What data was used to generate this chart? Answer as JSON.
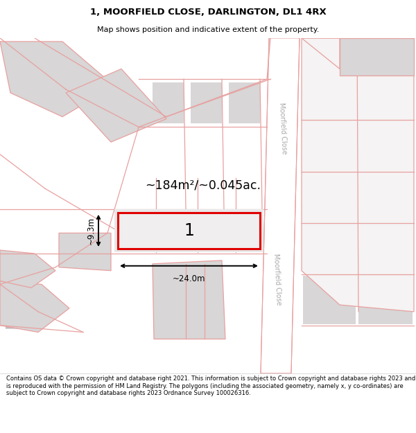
{
  "title": "1, MOORFIELD CLOSE, DARLINGTON, DL1 4RX",
  "subtitle": "Map shows position and indicative extent of the property.",
  "footer": "Contains OS data © Crown copyright and database right 2021. This information is subject to Crown copyright and database rights 2023 and is reproduced with the permission of HM Land Registry. The polygons (including the associated geometry, namely x, y co-ordinates) are subject to Crown copyright and database rights 2023 Ordnance Survey 100026316.",
  "area_text": "~184m²/~0.045ac.",
  "dim_width": "~24.0m",
  "dim_height": "~9.3m",
  "plot_label": "1",
  "map_bg": "#f5f3f3",
  "plot_border": "#e00000",
  "road_line": "#e8a0a0",
  "parcel_line": "#e8a0a0",
  "street_label": "Moorfield Close",
  "building_fill": "#d8d6d6",
  "road_bg": "#ffffff",
  "white_bg": "#ffffff"
}
